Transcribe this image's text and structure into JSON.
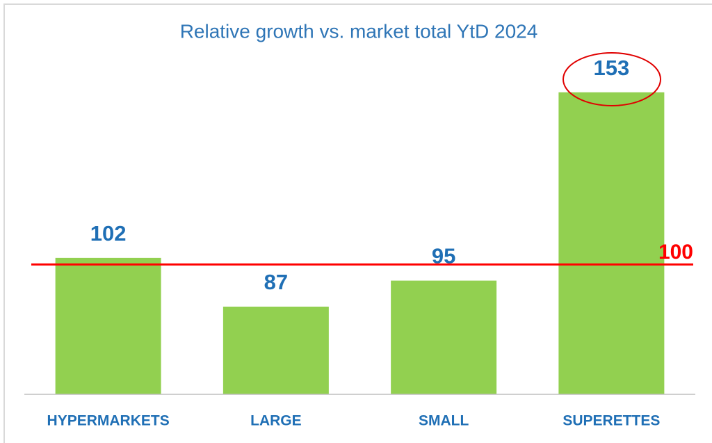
{
  "chart_data": {
    "type": "bar",
    "title": "Relative growth vs. market total YtD 2024",
    "categories": [
      "HYPERMARKETS",
      "LARGE",
      "SMALL",
      "SUPERETTES"
    ],
    "values": [
      102,
      87,
      95,
      153
    ],
    "color": "#92d050",
    "ylim": [
      60,
      160
    ],
    "reference_line": {
      "value": 100,
      "color": "#ff0000"
    }
  }
}
